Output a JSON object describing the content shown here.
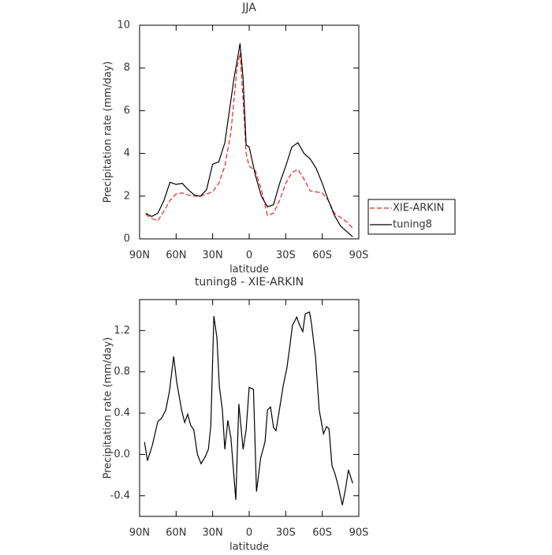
{
  "chart_data": [
    {
      "type": "line",
      "title": "JJA",
      "x_label": "latitude",
      "y_label": "Precipitation rate (mm/day)",
      "x": [
        85,
        80,
        75,
        70,
        65,
        60,
        55,
        50,
        45,
        40,
        35,
        30,
        25,
        20,
        15,
        12.5,
        10,
        7.5,
        5,
        2.5,
        0,
        -5,
        -10,
        -15,
        -20,
        -25,
        -30,
        -35,
        -40,
        -45,
        -50,
        -55,
        -60,
        -65,
        -70,
        -75,
        -80,
        -85
      ],
      "series": [
        {
          "name": "XIE-ARKIN",
          "color": "#e8231f",
          "line_style": "dashed",
          "values": [
            1.15,
            0.95,
            0.85,
            1.3,
            1.8,
            2.1,
            2.15,
            2.05,
            2.0,
            2.0,
            2.1,
            2.2,
            2.6,
            3.4,
            5.0,
            6.5,
            8.0,
            8.7,
            6.5,
            4.0,
            3.4,
            3.2,
            2.3,
            1.1,
            1.2,
            1.8,
            2.6,
            3.1,
            3.25,
            2.8,
            2.25,
            2.2,
            2.15,
            1.8,
            1.2,
            1.0,
            0.8,
            0.5
          ]
        },
        {
          "name": "tuning8",
          "color": "#000000",
          "line_style": "solid",
          "values": [
            1.2,
            1.05,
            1.2,
            1.8,
            2.65,
            2.55,
            2.6,
            2.3,
            2.05,
            2.0,
            2.3,
            3.5,
            3.6,
            4.5,
            6.5,
            7.5,
            8.3,
            9.15,
            7.5,
            4.4,
            4.3,
            3.0,
            2.0,
            1.5,
            1.6,
            2.6,
            3.4,
            4.3,
            4.5,
            4.0,
            3.75,
            3.3,
            2.6,
            1.8,
            1.1,
            0.6,
            0.35,
            0.1
          ]
        }
      ],
      "xlim": [
        90,
        -90
      ],
      "xticks": [
        {
          "value": 90,
          "label": "90N"
        },
        {
          "value": 60,
          "label": "60N"
        },
        {
          "value": 30,
          "label": "30N"
        },
        0,
        {
          "value": -30,
          "label": "30S"
        },
        {
          "value": -60,
          "label": "60S"
        },
        {
          "value": -90,
          "label": "90S"
        }
      ],
      "ylim": [
        0,
        10
      ],
      "yticks": [
        0,
        2,
        4,
        6,
        8,
        10
      ],
      "legend": "right"
    },
    {
      "type": "line",
      "title": "tuning8 - XIE-ARKIN",
      "x_label": "latitude",
      "y_label": "Precipitation rate (mm/day)",
      "x": [
        86,
        83.5,
        79.5,
        75,
        72,
        68.5,
        65.5,
        62,
        59.5,
        55.5,
        53,
        50.5,
        48,
        45.5,
        42.5,
        39.5,
        36,
        33.5,
        31.5,
        29,
        26.5,
        24.5,
        22,
        20,
        17.5,
        15,
        11,
        8.5,
        5,
        2.5,
        0,
        -3.5,
        -6,
        -9.5,
        -13,
        -15,
        -17.5,
        -20,
        -22,
        -24.5,
        -28,
        -31,
        -33.5,
        -35.5,
        -39,
        -41.5,
        -44,
        -46,
        -49.5,
        -51,
        -54.5,
        -57.5,
        -61,
        -63.5,
        -65.5,
        -68,
        -70.5,
        -73,
        -76.5,
        -79,
        -81.5,
        -85
      ],
      "color": "#000000",
      "values": [
        0.12,
        -0.06,
        0.09,
        0.32,
        0.35,
        0.43,
        0.61,
        0.95,
        0.7,
        0.43,
        0.31,
        0.39,
        0.28,
        0.24,
        0.0,
        -0.09,
        -0.02,
        0.05,
        0.28,
        1.34,
        1.13,
        0.66,
        0.43,
        0.05,
        0.33,
        0.16,
        -0.44,
        0.49,
        0.05,
        0.24,
        0.65,
        0.63,
        -0.36,
        -0.03,
        0.12,
        0.43,
        0.46,
        0.26,
        0.23,
        0.41,
        0.67,
        0.84,
        1.06,
        1.25,
        1.33,
        1.25,
        1.19,
        1.36,
        1.38,
        1.28,
        0.94,
        0.43,
        0.2,
        0.27,
        0.25,
        -0.11,
        -0.19,
        -0.3,
        -0.49,
        -0.34,
        -0.15,
        -0.28
      ],
      "xlim": [
        90,
        -90
      ],
      "xticks": [
        {
          "value": 90,
          "label": "90N"
        },
        {
          "value": 60,
          "label": "60N"
        },
        {
          "value": 30,
          "label": "30N"
        },
        0,
        {
          "value": -30,
          "label": "30S"
        },
        {
          "value": -60,
          "label": "60S"
        },
        {
          "value": -90,
          "label": "90S"
        }
      ],
      "ylim": [
        -0.6,
        1.5
      ],
      "yticks": [
        -0.4,
        {
          "value": 0,
          "label": "0.0"
        },
        0.4,
        0.8,
        1.2
      ]
    }
  ]
}
